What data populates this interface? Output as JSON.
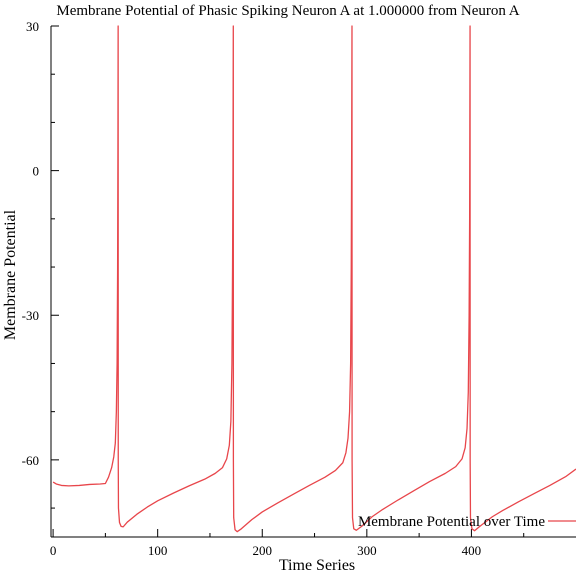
{
  "chart_data": {
    "type": "line",
    "title": "Membrane Potential of Phasic Spiking Neuron A at 1.000000 from Neuron A",
    "xlabel": "Time Series",
    "ylabel": "Membrane Potential",
    "xlim": [
      -2,
      500
    ],
    "ylim": [
      -76,
      30
    ],
    "x_ticks": [
      0,
      100,
      200,
      300,
      400
    ],
    "y_ticks": [
      30,
      0,
      -30,
      -60
    ],
    "grid": false,
    "legend_position": "bottom-right",
    "series": [
      {
        "name": "Membrane Potential over Time",
        "color": "#e8464b",
        "points": [
          [
            0,
            -64.6
          ],
          [
            3,
            -65.0
          ],
          [
            8,
            -65.3
          ],
          [
            15,
            -65.4
          ],
          [
            25,
            -65.3
          ],
          [
            35,
            -65.1
          ],
          [
            45,
            -65.0
          ],
          [
            50,
            -64.9
          ],
          [
            53,
            -63.6
          ],
          [
            56,
            -61.6
          ],
          [
            58,
            -59.4
          ],
          [
            59.5,
            -56.5
          ],
          [
            60.5,
            -50
          ],
          [
            61.2,
            -40
          ],
          [
            61.7,
            -20
          ],
          [
            62.0,
            5
          ],
          [
            62.2,
            30
          ],
          [
            62.3,
            -60
          ],
          [
            62.5,
            -70
          ],
          [
            63.5,
            -73.0
          ],
          [
            65,
            -73.8
          ],
          [
            67,
            -73.9
          ],
          [
            71,
            -72.9
          ],
          [
            80,
            -71.3
          ],
          [
            90,
            -69.8
          ],
          [
            100,
            -68.5
          ],
          [
            115,
            -66.9
          ],
          [
            130,
            -65.4
          ],
          [
            145,
            -64.0
          ],
          [
            155,
            -62.8
          ],
          [
            162,
            -61.6
          ],
          [
            166,
            -59.8
          ],
          [
            168.5,
            -57.0
          ],
          [
            170,
            -52
          ],
          [
            171,
            -40
          ],
          [
            171.6,
            -20
          ],
          [
            172.0,
            0
          ],
          [
            172.3,
            30
          ],
          [
            172.4,
            -60
          ],
          [
            172.7,
            -72
          ],
          [
            174,
            -74.5
          ],
          [
            176,
            -74.9
          ],
          [
            180,
            -74.3
          ],
          [
            190,
            -72.4
          ],
          [
            200,
            -70.8
          ],
          [
            215,
            -68.9
          ],
          [
            230,
            -67.1
          ],
          [
            245,
            -65.3
          ],
          [
            260,
            -63.6
          ],
          [
            270,
            -62.2
          ],
          [
            277,
            -60.6
          ],
          [
            280,
            -58.5
          ],
          [
            282,
            -55.5
          ],
          [
            283.5,
            -50
          ],
          [
            284.5,
            -40
          ],
          [
            285.1,
            -20
          ],
          [
            285.5,
            5
          ],
          [
            285.8,
            30
          ],
          [
            285.9,
            -60
          ],
          [
            286.3,
            -72
          ],
          [
            287.5,
            -74.3
          ],
          [
            290,
            -74.6
          ],
          [
            295,
            -73.8
          ],
          [
            305,
            -71.8
          ],
          [
            315,
            -70.3
          ],
          [
            330,
            -68.3
          ],
          [
            345,
            -66.4
          ],
          [
            360,
            -64.5
          ],
          [
            375,
            -62.8
          ],
          [
            385,
            -61.4
          ],
          [
            391,
            -59.8
          ],
          [
            394,
            -57.5
          ],
          [
            395.8,
            -53.5
          ],
          [
            397,
            -46
          ],
          [
            397.8,
            -30
          ],
          [
            398.3,
            -10
          ],
          [
            398.7,
            30
          ],
          [
            398.8,
            -60
          ],
          [
            399.1,
            -72
          ],
          [
            400.5,
            -74.3
          ],
          [
            403,
            -74.7
          ],
          [
            408,
            -73.8
          ],
          [
            420,
            -71.8
          ],
          [
            430,
            -70.5
          ],
          [
            445,
            -68.7
          ],
          [
            460,
            -67.0
          ],
          [
            475,
            -65.3
          ],
          [
            490,
            -63.5
          ],
          [
            500,
            -61.9
          ]
        ]
      }
    ]
  }
}
